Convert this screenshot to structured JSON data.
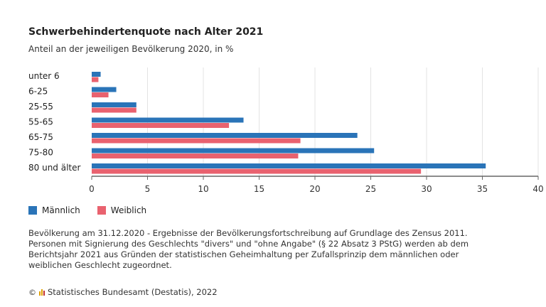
{
  "title": "Schwerbehindertenquote nach Alter 2021",
  "subtitle": "Anteil an der jeweiligen Bevölkerung 2020, in %",
  "chart_data": {
    "type": "bar",
    "orientation": "horizontal",
    "title": "Schwerbehindertenquote nach Alter 2021",
    "subtitle": "Anteil an der jeweiligen Bevölkerung 2020, in %",
    "categories": [
      "unter 6",
      "6-25",
      "25-55",
      "55-65",
      "65-75",
      "75-80",
      "80 und älter"
    ],
    "series": [
      {
        "name": "Männlich",
        "color": "#2a74b8",
        "values": [
          0.8,
          2.2,
          4.0,
          13.6,
          23.8,
          25.3,
          35.3
        ]
      },
      {
        "name": "Weiblich",
        "color": "#e9626f",
        "values": [
          0.6,
          1.5,
          4.0,
          12.3,
          18.7,
          18.5,
          29.5
        ]
      }
    ],
    "xlim": [
      0,
      40
    ],
    "xticks": [
      "0",
      "5",
      "10",
      "15",
      "20",
      "25",
      "30",
      "35",
      "40"
    ],
    "grid": true,
    "legend": "bottom-left"
  },
  "note": "Bevölkerung am 31.12.2020 - Ergebnisse der Bevölkerungsfortschreibung auf Grundlage des Zensus 2011. Personen mit Signierung des Geschlechts \"divers\" und \"ohne Angabe\" (§ 22 Absatz 3 PStG) werden ab dem Berichtsjahr 2021 aus Gründen der statistischen Geheimhaltung per Zufallsprinzip dem männlichen oder weiblichen Geschlecht zugeordnet.",
  "source": "Statistisches Bundesamt (Destatis), 2022",
  "logo_text": "©"
}
